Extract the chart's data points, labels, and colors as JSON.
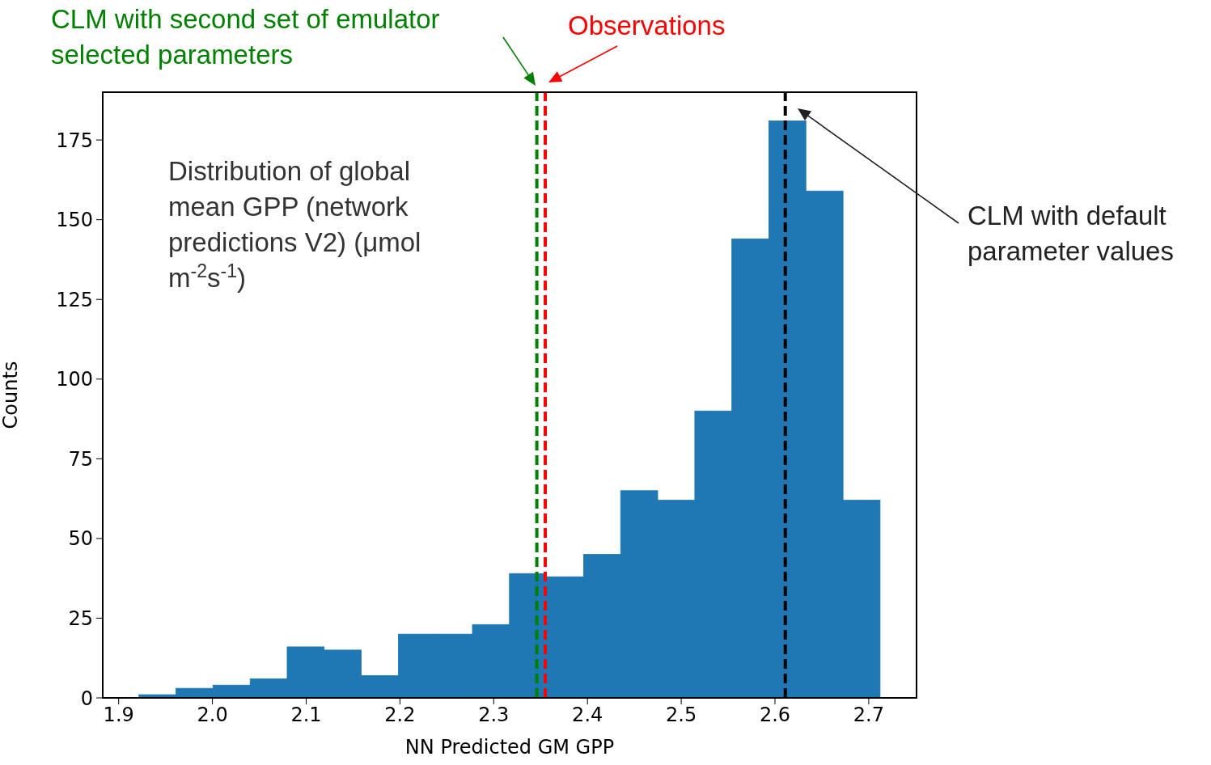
{
  "chart_data": {
    "type": "histogram",
    "xlabel": "NN Predicted GM GPP",
    "ylabel": "Counts",
    "bins": [
      1.9216,
      1.9611,
      2.0006,
      2.0402,
      2.0797,
      2.1192,
      2.1587,
      2.1983,
      2.2378,
      2.2773,
      2.3168,
      2.3564,
      2.3959,
      2.4354,
      2.4749,
      2.5145,
      2.554,
      2.5935,
      2.633,
      2.6726,
      2.7121
    ],
    "values": [
      1,
      3,
      4,
      6,
      16,
      15,
      7,
      20,
      20,
      23,
      39,
      38,
      45,
      65,
      62,
      90,
      144,
      181,
      159,
      62
    ],
    "color": "#1f77b4",
    "xlim": [
      1.883,
      2.751
    ],
    "xticks": [
      {
        "value": 1.9,
        "label": "1.9"
      },
      {
        "value": 2.0,
        "label": "2.0"
      },
      {
        "value": 2.1,
        "label": "2.1"
      },
      {
        "value": 2.2,
        "label": "2.2"
      },
      {
        "value": 2.3,
        "label": "2.3"
      },
      {
        "value": 2.4,
        "label": "2.4"
      },
      {
        "value": 2.5,
        "label": "2.5"
      },
      {
        "value": 2.6,
        "label": "2.6"
      },
      {
        "value": 2.7,
        "label": "2.7"
      }
    ],
    "ylim": [
      0,
      190
    ],
    "yticks": [
      0,
      25,
      50,
      75,
      100,
      125,
      150,
      175
    ],
    "ref_lines": [
      {
        "axis": "x",
        "value": 2.346,
        "label": "CLM with second set of emulator selected parameters",
        "color": "#008000",
        "line_style": "dashed"
      },
      {
        "axis": "x",
        "value": 2.355,
        "label": "Observations",
        "color": "#ff0000",
        "line_style": "dashed"
      },
      {
        "axis": "x",
        "value": 2.611,
        "label": "CLM with default parameter values",
        "color": "#000000",
        "line_style": "dashed"
      }
    ],
    "annotations": [
      "Distribution of global mean GPP (network predictions V2) (μmol m$^{-2}$s$^{-1}$)"
    ],
    "grid": false
  }
}
